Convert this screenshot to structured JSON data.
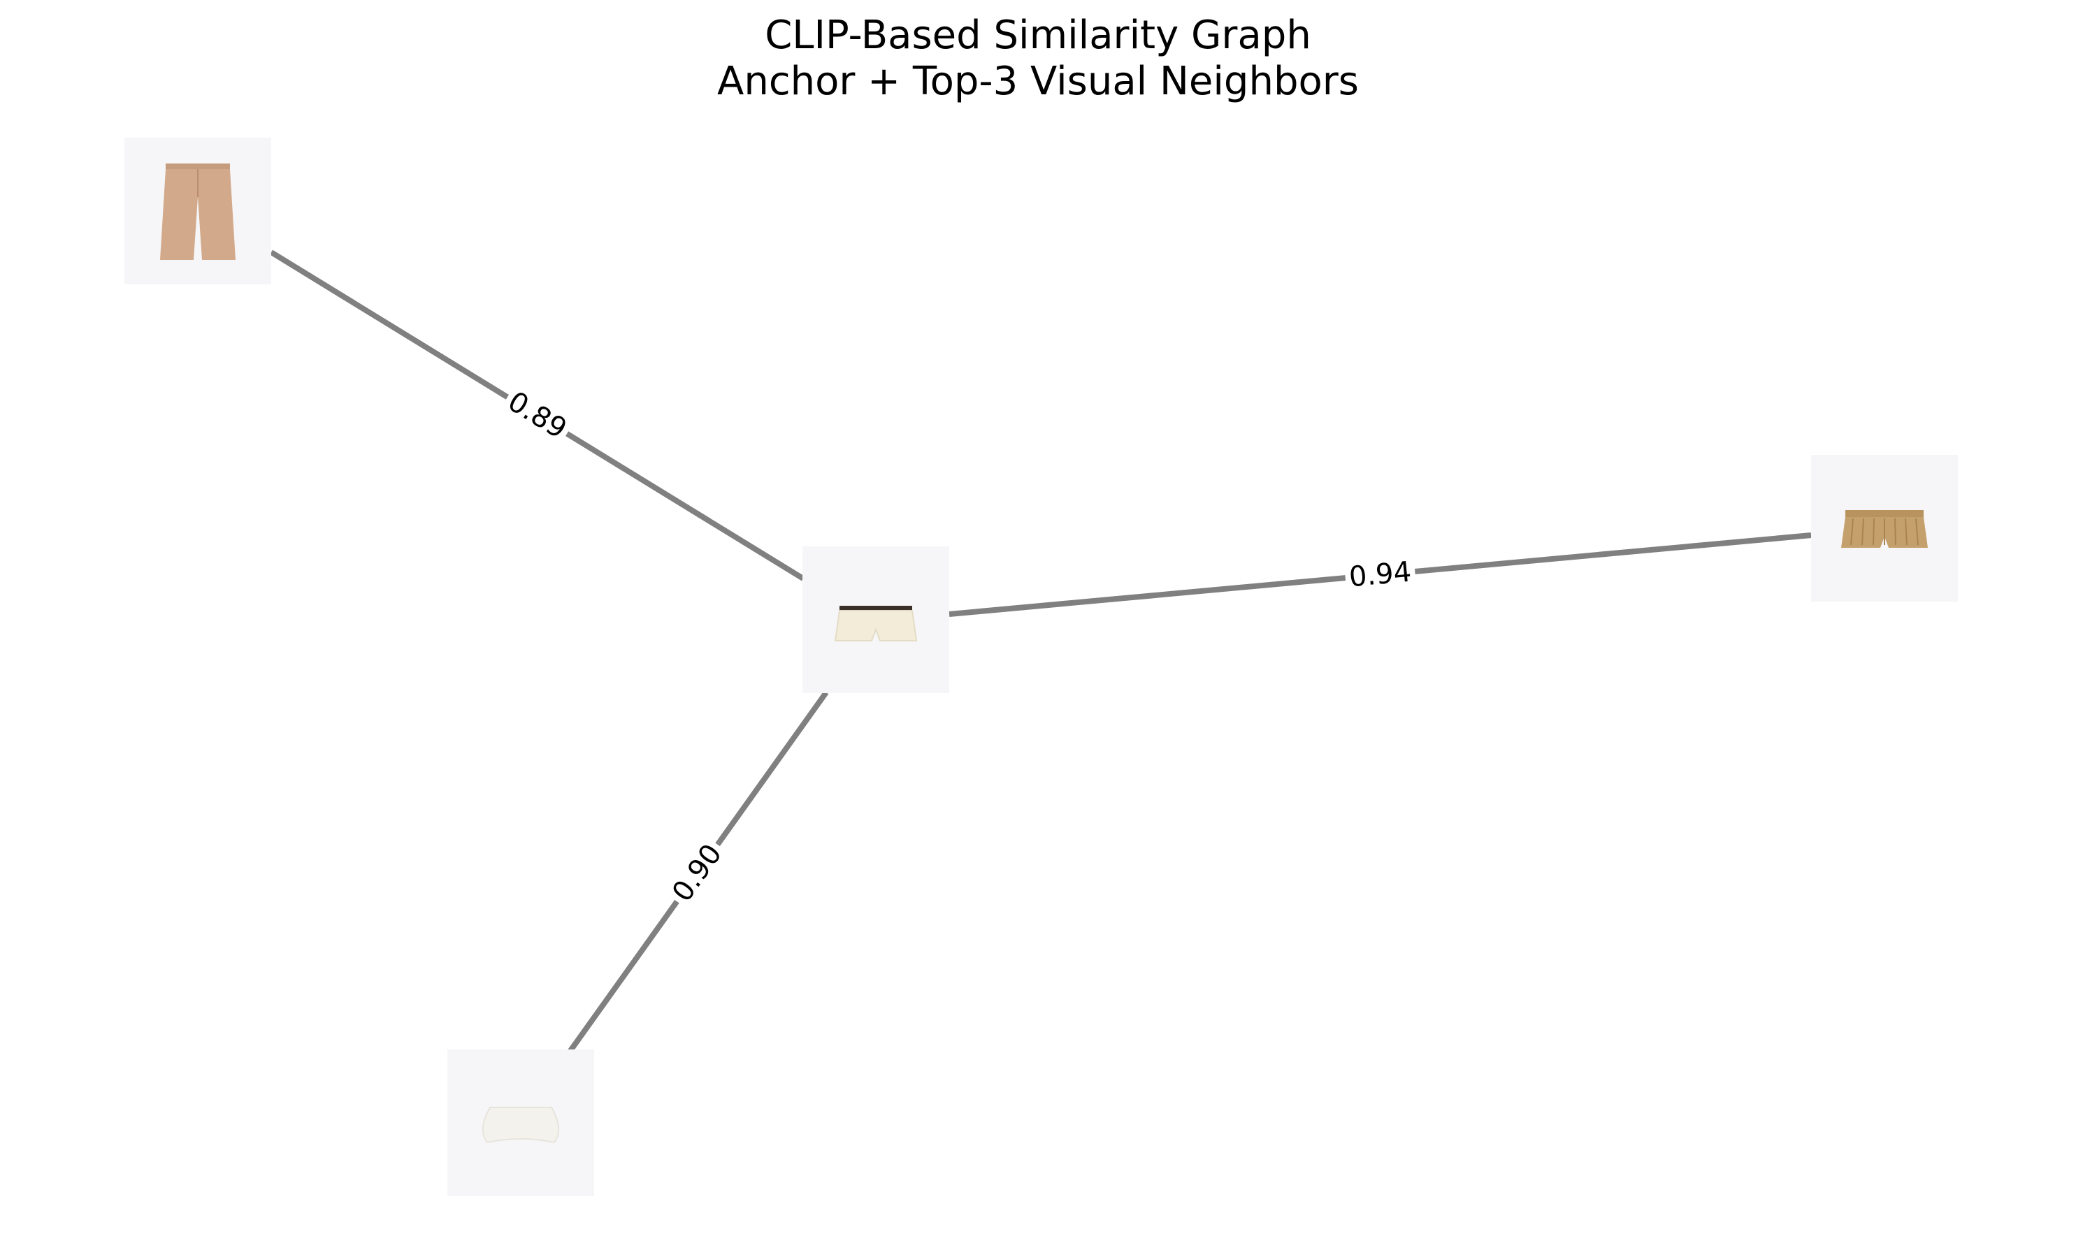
{
  "title": {
    "line1": "CLIP-Based Similarity Graph",
    "line2": "Anchor + Top-3 Visual Neighbors"
  },
  "colors": {
    "edge": "#808080",
    "tile_background": "#f6f6f8",
    "page_background": "#ffffff"
  },
  "nodes": [
    {
      "id": "anchor",
      "role": "anchor",
      "item": "cream-belted-shorts-thumbnail",
      "garment_color": "#f3ecd9"
    },
    {
      "id": "n1",
      "role": "neighbor",
      "item": "tan-wide-leg-trousers-thumbnail",
      "garment_color": "#d2a98a"
    },
    {
      "id": "n2",
      "role": "neighbor",
      "item": "khaki-pleated-shorts-thumbnail",
      "garment_color": "#c4a06c"
    },
    {
      "id": "n3",
      "role": "neighbor",
      "item": "white-bubble-shorts-thumbnail",
      "garment_color": "#f4f2ec"
    }
  ],
  "edges": [
    {
      "source": "anchor",
      "target": "n1",
      "similarity": "0.89"
    },
    {
      "source": "anchor",
      "target": "n2",
      "similarity": "0.94"
    },
    {
      "source": "anchor",
      "target": "n3",
      "similarity": "0.90"
    }
  ]
}
